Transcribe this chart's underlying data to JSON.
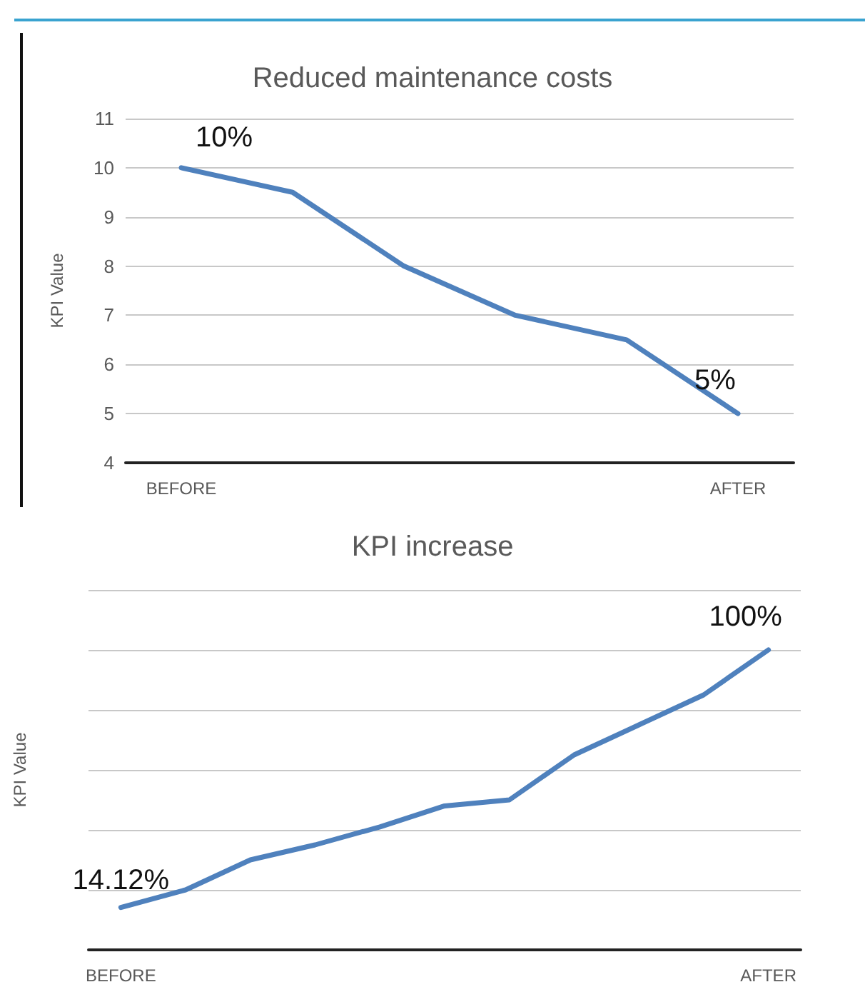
{
  "chart_data": [
    {
      "type": "line",
      "title": "Reduced maintenance costs",
      "ylabel": "KPI Value",
      "categories": [
        "BEFORE",
        null,
        null,
        null,
        null,
        "AFTER"
      ],
      "values": [
        10,
        9.5,
        8,
        7,
        6.5,
        5
      ],
      "value_labels": [
        "10%",
        null,
        null,
        null,
        null,
        "5%"
      ],
      "color": "#4f81bd",
      "ylim": [
        4,
        11
      ],
      "yticks": [
        4,
        5,
        6,
        7,
        8,
        9,
        10,
        11
      ],
      "grid": "y"
    },
    {
      "type": "line",
      "title": "KPI increase",
      "ylabel": "KPI Value",
      "categories": [
        "BEFORE",
        null,
        null,
        null,
        null,
        null,
        null,
        null,
        null,
        null,
        "AFTER"
      ],
      "values": [
        14.12,
        20,
        30,
        35,
        41,
        48,
        50,
        65,
        75,
        85,
        100
      ],
      "value_labels": [
        "14.12%",
        null,
        null,
        null,
        null,
        null,
        null,
        null,
        null,
        null,
        "100%"
      ],
      "color": "#4f81bd",
      "ylim": [
        0,
        120
      ],
      "yticks": [
        {
          "value": 0,
          "label": null
        },
        {
          "value": 20,
          "label": null
        },
        {
          "value": 40,
          "label": null
        },
        {
          "value": 60,
          "label": null
        },
        {
          "value": 80,
          "label": null
        },
        {
          "value": 100,
          "label": null
        },
        {
          "value": 120,
          "label": null
        }
      ],
      "grid": "y",
      "tick_labels": "x"
    }
  ]
}
